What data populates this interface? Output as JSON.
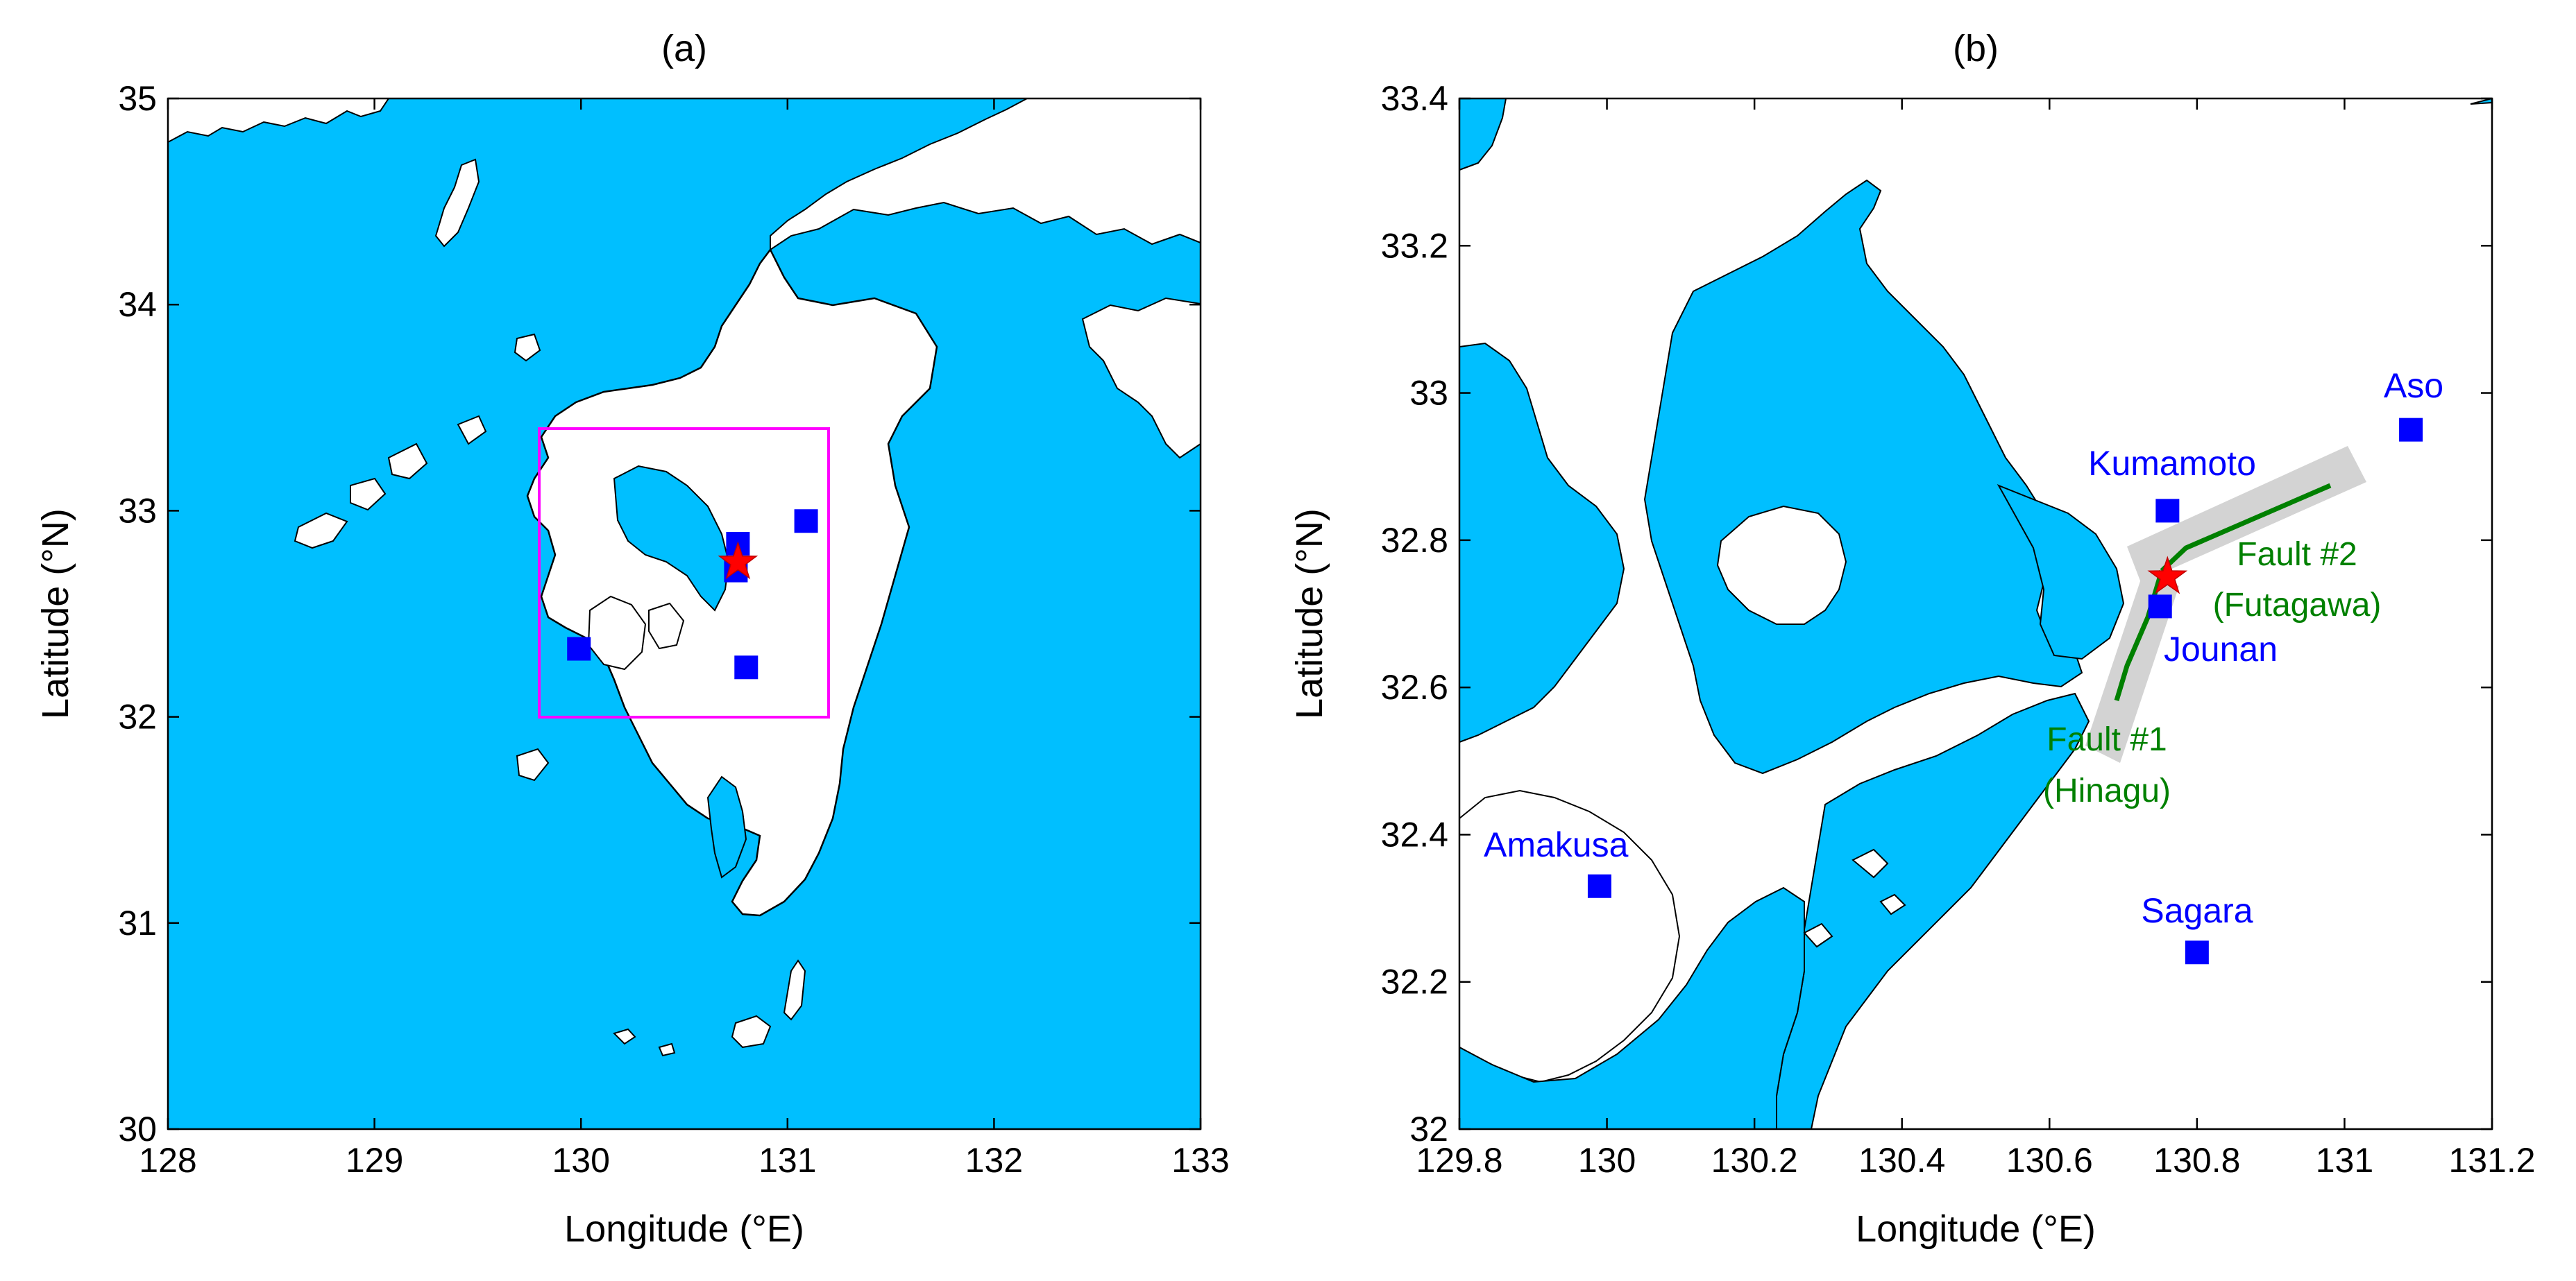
{
  "colors": {
    "sea": "#00bfff",
    "land": "#ffffff",
    "coast": "#000000",
    "station": "#0000ff",
    "epicenter": "#ff0000",
    "fault": "#008000",
    "fault_zone": "#d3d3d3",
    "inset_box": "#ff00ff"
  },
  "panels": [
    {
      "title": "(a)",
      "xlabel": "Longitude (°E)",
      "ylabel": "Latitude (°N)",
      "xlim": [
        128,
        133
      ],
      "ylim": [
        30,
        35
      ],
      "xticks": [
        "128",
        "129",
        "130",
        "131",
        "132",
        "133"
      ],
      "yticks": [
        "30",
        "31",
        "32",
        "33",
        "34",
        "35"
      ],
      "inset_box": {
        "lon": [
          129.8,
          131.2
        ],
        "lat": [
          32.0,
          33.4
        ]
      },
      "stations": [
        {
          "lon": 130.76,
          "lat": 32.84
        },
        {
          "lon": 130.75,
          "lat": 32.71
        },
        {
          "lon": 131.09,
          "lat": 32.95
        },
        {
          "lon": 129.99,
          "lat": 32.33
        },
        {
          "lon": 130.8,
          "lat": 32.24
        }
      ],
      "epicenter": {
        "lon": 130.76,
        "lat": 32.75
      }
    },
    {
      "title": "(b)",
      "xlabel": "Longitude (°E)",
      "ylabel": "Latitude (°N)",
      "xlim": [
        129.8,
        131.2
      ],
      "ylim": [
        32.0,
        33.4
      ],
      "xticks": [
        "129.8",
        "130",
        "130.2",
        "130.4",
        "130.6",
        "130.8",
        "131",
        "131.2"
      ],
      "yticks": [
        "32",
        "32.2",
        "32.4",
        "32.6",
        "32.8",
        "33",
        "33.2",
        "33.4"
      ],
      "stations": [
        {
          "name": "Aso",
          "lon": 131.09,
          "lat": 32.95
        },
        {
          "name": "Kumamoto",
          "lon": 130.76,
          "lat": 32.84
        },
        {
          "name": "Jounan",
          "lon": 130.75,
          "lat": 32.71
        },
        {
          "name": "Amakusa",
          "lon": 129.99,
          "lat": 32.33
        },
        {
          "name": "Sagara",
          "lon": 130.8,
          "lat": 32.24
        }
      ],
      "epicenter": {
        "lon": 130.76,
        "lat": 32.75
      },
      "faults": [
        {
          "name_line1": "Fault #2",
          "name_line2": "(Futagawa)"
        },
        {
          "name_line1": "Fault #1",
          "name_line2": "(Hinagu)"
        }
      ]
    }
  ]
}
